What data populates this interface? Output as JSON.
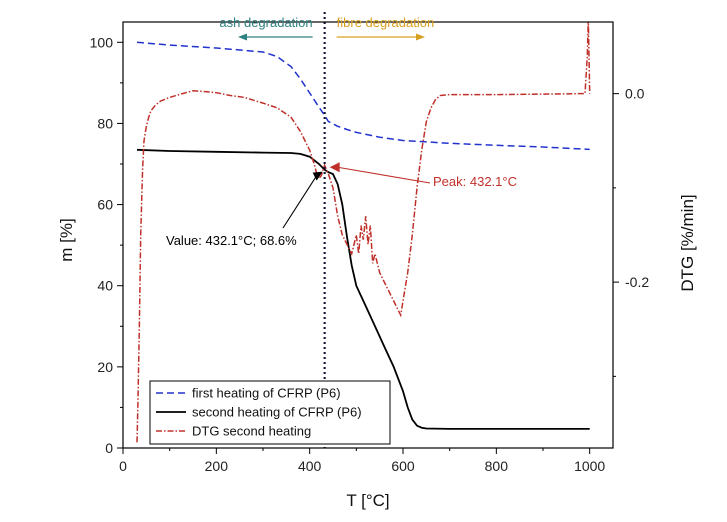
{
  "chart_data": {
    "type": "line",
    "title": "",
    "xlabel": "T [°C]",
    "ylabel": "m [%]",
    "y2label": "DTG [%/min]",
    "xlim": [
      0,
      1050
    ],
    "ylim": [
      0,
      105
    ],
    "y2lim": [
      -0.376,
      0.076
    ],
    "x_ticks": [
      0,
      200,
      400,
      600,
      800,
      1000
    ],
    "y_ticks": [
      0,
      20,
      40,
      60,
      80,
      100
    ],
    "y2_ticks": [
      0.0,
      -0.2
    ],
    "x_minor_step": 100,
    "y_minor_step": 10,
    "y2_minor_step": 0.1,
    "grid": false,
    "legend_position": "bottom-left",
    "reference_line": {
      "x": 432.1,
      "style": "dotted"
    },
    "regions": {
      "left": {
        "label": "ash degradation",
        "color": "#2e7f80",
        "arrow": "left"
      },
      "right": {
        "label": "fibre degradation",
        "color": "#d8a020",
        "arrow": "right"
      }
    },
    "annotations": [
      {
        "text": "Peak: 432.1°C",
        "color": "#c0302a",
        "target_series": "DTG second heating",
        "target_x": 432.1,
        "target_y2": -0.076
      },
      {
        "text": "Value: 432.1°C; 68.6%",
        "color": "#000000",
        "target_series": "second heating of CFRP (P6)",
        "target_x": 432.1,
        "target_y": 68.6
      }
    ],
    "series": [
      {
        "name": "first heating of CFRP (P6)",
        "axis": "left",
        "color": "#2233cc",
        "dash": "dashed",
        "x": [
          30,
          100,
          200,
          300,
          330,
          360,
          380,
          400,
          420,
          432,
          440,
          460,
          480,
          500,
          550,
          600,
          700,
          800,
          900,
          1000
        ],
        "y": [
          100.0,
          99.3,
          98.6,
          97.6,
          96.5,
          94.0,
          91.0,
          87.5,
          84.0,
          82.0,
          80.5,
          79.3,
          78.5,
          77.8,
          76.6,
          75.8,
          75.1,
          74.6,
          74.2,
          73.6
        ]
      },
      {
        "name": "second heating of CFRP (P6)",
        "axis": "left",
        "color": "#000000",
        "dash": "solid",
        "x": [
          30,
          100,
          200,
          300,
          360,
          380,
          400,
          420,
          432,
          440,
          450,
          460,
          470,
          480,
          490,
          500,
          520,
          540,
          560,
          580,
          600,
          610,
          620,
          630,
          640,
          650,
          700,
          800,
          900,
          1000
        ],
        "y": [
          73.5,
          73.2,
          73.0,
          72.8,
          72.7,
          72.5,
          71.8,
          70.0,
          68.6,
          68.0,
          67.5,
          65.0,
          60.0,
          52.0,
          45.0,
          40.0,
          35.0,
          30.0,
          25.0,
          20.0,
          14.0,
          10.0,
          7.0,
          5.5,
          5.0,
          4.8,
          4.7,
          4.7,
          4.7,
          4.7
        ]
      },
      {
        "name": "DTG second heating",
        "axis": "right",
        "color": "#c0302a",
        "dash": "dashdot",
        "x": [
          30,
          32,
          35,
          38,
          42,
          45,
          50,
          55,
          60,
          70,
          80,
          100,
          120,
          150,
          180,
          200,
          230,
          260,
          300,
          330,
          360,
          380,
          400,
          410,
          415,
          420,
          425,
          432,
          440,
          450,
          460,
          470,
          480,
          490,
          500,
          505,
          510,
          515,
          520,
          525,
          530,
          535,
          540,
          550,
          560,
          570,
          580,
          590,
          595,
          600,
          610,
          620,
          630,
          640,
          650,
          660,
          670,
          680,
          700,
          800,
          900,
          990,
          995,
          997,
          1000
        ],
        "y": [
          -0.37,
          -0.33,
          -0.25,
          -0.15,
          -0.08,
          -0.05,
          -0.035,
          -0.025,
          -0.018,
          -0.012,
          -0.008,
          -0.004,
          -0.001,
          0.003,
          0.002,
          0.001,
          -0.002,
          -0.004,
          -0.01,
          -0.015,
          -0.025,
          -0.04,
          -0.06,
          -0.075,
          -0.085,
          -0.09,
          -0.087,
          -0.076,
          -0.085,
          -0.1,
          -0.13,
          -0.15,
          -0.16,
          -0.17,
          -0.15,
          -0.17,
          -0.14,
          -0.155,
          -0.13,
          -0.16,
          -0.14,
          -0.18,
          -0.17,
          -0.19,
          -0.2,
          -0.21,
          -0.22,
          -0.23,
          -0.235,
          -0.22,
          -0.19,
          -0.15,
          -0.1,
          -0.06,
          -0.03,
          -0.015,
          -0.006,
          -0.002,
          -0.001,
          -0.001,
          -0.0005,
          0.0,
          0.04,
          0.08,
          0.0
        ]
      }
    ]
  }
}
